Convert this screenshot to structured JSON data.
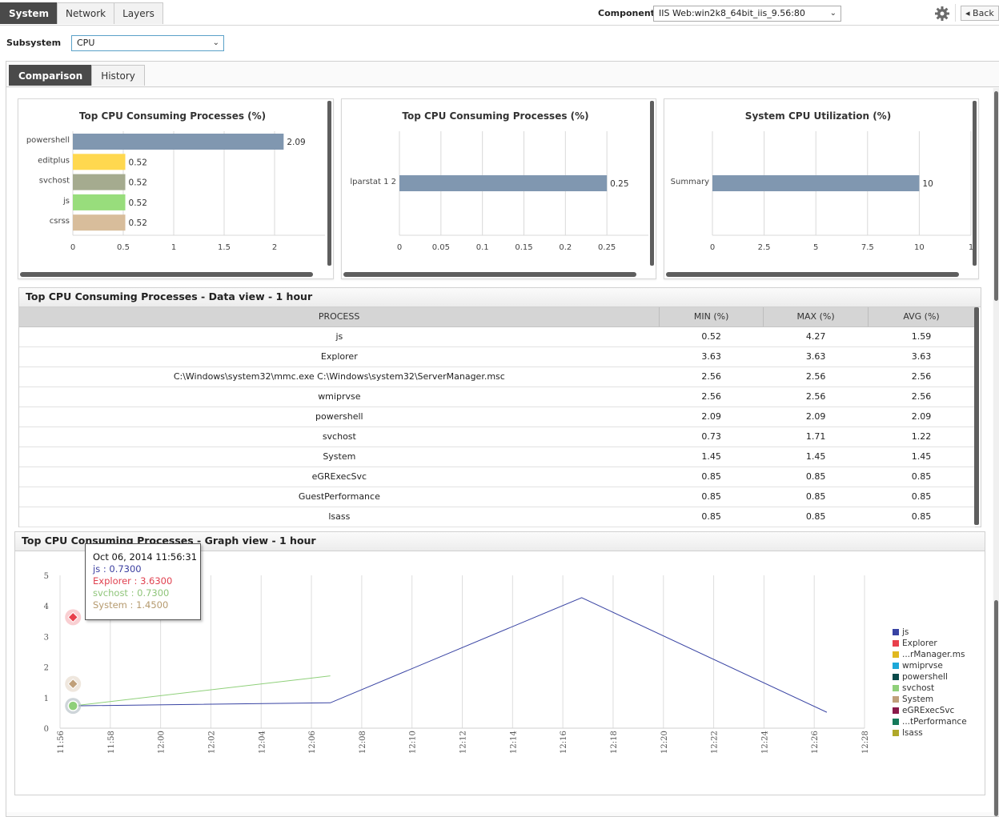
{
  "top_tabs": [
    "System",
    "Network",
    "Layers"
  ],
  "component": {
    "label": "Component",
    "value": "IIS Web:win2k8_64bit_iis_9.56:80"
  },
  "back_label": "Back",
  "subsystem": {
    "label": "Subsystem",
    "value": "CPU"
  },
  "sub_tabs": [
    "Comparison",
    "History"
  ],
  "cards": [
    {
      "title": "Top CPU Consuming Processes (%)",
      "chart_data": {
        "type": "bar",
        "orientation": "horizontal",
        "categories": [
          "powershell",
          "editplus",
          "svchost",
          "js",
          "csrss"
        ],
        "values": [
          2.09,
          0.52,
          0.52,
          0.52,
          0.52
        ],
        "value_labels": [
          "2.09",
          "0.52",
          "0.52",
          "0.52",
          "0.52"
        ],
        "colors": [
          "#8097b0",
          "#ffd84f",
          "#a5ab8f",
          "#98dd7c",
          "#d8bd9b"
        ],
        "xticks": [
          "0",
          "0.5",
          "1",
          "1.5",
          "2"
        ],
        "xlim": [
          0,
          2.5
        ]
      }
    },
    {
      "title": "Top CPU Consuming Processes (%)",
      "chart_data": {
        "type": "bar",
        "orientation": "horizontal",
        "categories": [
          "lparstat 1 2"
        ],
        "values": [
          0.25
        ],
        "value_labels": [
          "0.25"
        ],
        "colors": [
          "#8097b0"
        ],
        "xticks": [
          "0",
          "0.05",
          "0.1",
          "0.15",
          "0.2",
          "0.25"
        ],
        "xlim": [
          0,
          0.3
        ]
      }
    },
    {
      "title": "System CPU Utilization (%)",
      "chart_data": {
        "type": "bar",
        "orientation": "horizontal",
        "categories": [
          "Summary"
        ],
        "values": [
          10
        ],
        "value_labels": [
          "10"
        ],
        "colors": [
          "#8097b0"
        ],
        "xticks": [
          "0",
          "2.5",
          "5",
          "7.5",
          "10",
          "1"
        ],
        "xlim": [
          0,
          12.5
        ]
      }
    }
  ],
  "data_view": {
    "title": "Top CPU Consuming Processes - Data view - 1 hour",
    "columns": [
      "PROCESS",
      "MIN (%)",
      "MAX (%)",
      "AVG (%)"
    ],
    "rows": [
      [
        "js",
        "0.52",
        "4.27",
        "1.59"
      ],
      [
        "Explorer",
        "3.63",
        "3.63",
        "3.63"
      ],
      [
        "C:\\Windows\\system32\\mmc.exe C:\\Windows\\system32\\ServerManager.msc",
        "2.56",
        "2.56",
        "2.56"
      ],
      [
        "wmiprvse",
        "2.56",
        "2.56",
        "2.56"
      ],
      [
        "powershell",
        "2.09",
        "2.09",
        "2.09"
      ],
      [
        "svchost",
        "0.73",
        "1.71",
        "1.22"
      ],
      [
        "System",
        "1.45",
        "1.45",
        "1.45"
      ],
      [
        "eGRExecSvc",
        "0.85",
        "0.85",
        "0.85"
      ],
      [
        "GuestPerformance",
        "0.85",
        "0.85",
        "0.85"
      ],
      [
        "lsass",
        "0.85",
        "0.85",
        "0.85"
      ]
    ]
  },
  "graph_view": {
    "title": "Top CPU Consuming Processes - Graph view - 1 hour",
    "tooltip": {
      "header": "Oct 06, 2014 11:56:31",
      "lines": [
        "js : 0.7300",
        "Explorer : 3.6300",
        "svchost : 0.7300",
        "System : 1.4500"
      ],
      "colors": [
        "#3b3fa0",
        "#e0404f",
        "#8fc57a",
        "#b59a6e"
      ]
    },
    "legend": [
      {
        "name": "js",
        "color": "#3843a3"
      },
      {
        "name": "Explorer",
        "color": "#e8404c"
      },
      {
        "name": "...rManager.ms",
        "color": "#e0b820"
      },
      {
        "name": "wmiprvse",
        "color": "#1da8d8"
      },
      {
        "name": "powershell",
        "color": "#0a4a4a"
      },
      {
        "name": "svchost",
        "color": "#8fd07a"
      },
      {
        "name": "System",
        "color": "#c0a07a"
      },
      {
        "name": "eGRExecSvc",
        "color": "#8a1a4a"
      },
      {
        "name": "...tPerformance",
        "color": "#157a5a"
      },
      {
        "name": "lsass",
        "color": "#b0a82a"
      }
    ],
    "chart_data": {
      "type": "line",
      "x_ticks": [
        "11:56",
        "11:58",
        "12:00",
        "12:02",
        "12:04",
        "12:06",
        "12:08",
        "12:10",
        "12:12",
        "12:14",
        "12:16",
        "12:18",
        "12:20",
        "12:22",
        "12:24",
        "12:26",
        "12:28"
      ],
      "xlim": [
        "11:56",
        "12:28"
      ],
      "yticks": [
        "0",
        "1",
        "2",
        "3",
        "4",
        "5"
      ],
      "ylim": [
        0,
        5
      ],
      "grid": "vertical",
      "legend_position": "right",
      "series": [
        {
          "name": "js",
          "color": "#3843a3",
          "points": [
            [
              "11:56:31",
              0.73
            ],
            [
              "12:06:45",
              0.83
            ],
            [
              "12:16:45",
              4.27
            ],
            [
              "12:26:30",
              0.52
            ]
          ]
        },
        {
          "name": "svchost",
          "color": "#8fd07a",
          "points": [
            [
              "11:56:31",
              0.73
            ],
            [
              "12:06:45",
              1.71
            ]
          ]
        }
      ],
      "markers": [
        {
          "name": "Explorer",
          "color": "#e8404c",
          "shape": "diamond",
          "x": "11:56:31",
          "y": 3.63
        },
        {
          "name": "System",
          "color": "#c0a07a",
          "shape": "diamond",
          "x": "11:56:31",
          "y": 1.45
        },
        {
          "name": "svchost",
          "color": "#8fd07a",
          "shape": "circle",
          "x": "11:56:31",
          "y": 0.73
        }
      ]
    }
  }
}
